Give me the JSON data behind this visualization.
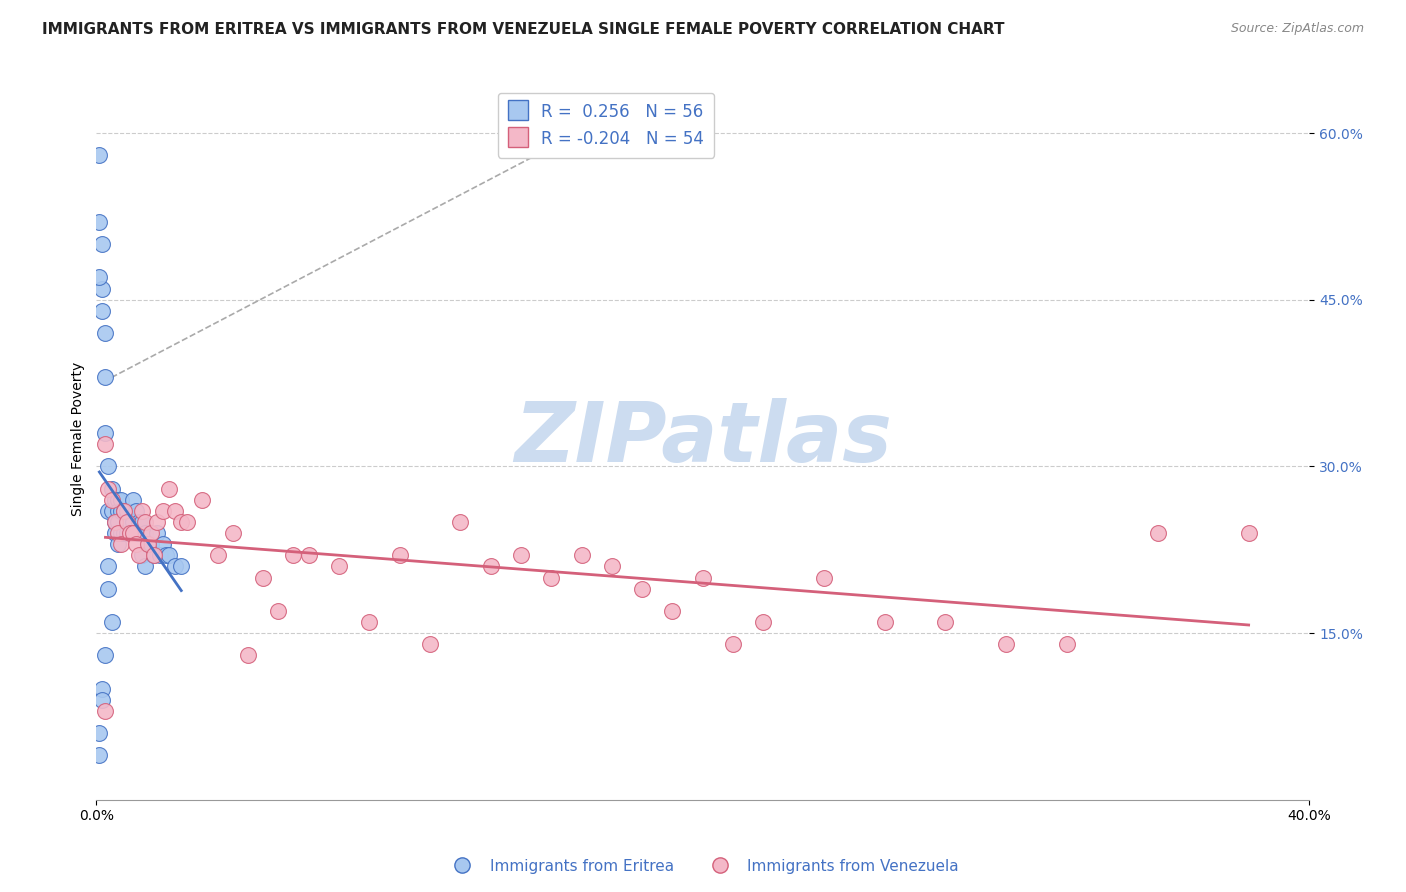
{
  "title": "IMMIGRANTS FROM ERITREA VS IMMIGRANTS FROM VENEZUELA SINGLE FEMALE POVERTY CORRELATION CHART",
  "source": "Source: ZipAtlas.com",
  "ylabel": "Single Female Poverty",
  "xmin": 0.0,
  "xmax": 0.4,
  "ymin": 0.0,
  "ymax": 0.65,
  "yticks": [
    0.15,
    0.3,
    0.45,
    0.6
  ],
  "ytick_labels": [
    "15.0%",
    "30.0%",
    "45.0%",
    "60.0%"
  ],
  "xtick_labels": [
    "0.0%",
    "40.0%"
  ],
  "legend1_label": "R =  0.256   N = 56",
  "legend2_label": "R = -0.204   N = 54",
  "color_eritrea": "#a8c8f0",
  "color_venezuela": "#f4b8c8",
  "line_color_eritrea": "#4472c4",
  "line_color_venezuela": "#d4607a",
  "watermark_text": "ZIPatlas",
  "watermark_color": "#ccdcf0",
  "background_color": "#ffffff",
  "legend_text_color": "#4472c4",
  "title_fontsize": 11,
  "axis_label_fontsize": 10,
  "tick_label_fontsize": 10,
  "eritrea_x": [
    0.001,
    0.001,
    0.001,
    0.002,
    0.002,
    0.002,
    0.003,
    0.003,
    0.003,
    0.004,
    0.004,
    0.004,
    0.005,
    0.005,
    0.005,
    0.006,
    0.006,
    0.006,
    0.007,
    0.007,
    0.007,
    0.007,
    0.008,
    0.008,
    0.008,
    0.009,
    0.009,
    0.01,
    0.01,
    0.01,
    0.011,
    0.012,
    0.012,
    0.013,
    0.013,
    0.014,
    0.015,
    0.015,
    0.016,
    0.016,
    0.017,
    0.018,
    0.019,
    0.02,
    0.021,
    0.022,
    0.023,
    0.024,
    0.026,
    0.028,
    0.001,
    0.002,
    0.003,
    0.001,
    0.002,
    0.004
  ],
  "eritrea_y": [
    0.58,
    0.52,
    0.04,
    0.5,
    0.46,
    0.1,
    0.42,
    0.33,
    0.13,
    0.3,
    0.26,
    0.21,
    0.28,
    0.26,
    0.16,
    0.27,
    0.25,
    0.24,
    0.27,
    0.26,
    0.25,
    0.23,
    0.27,
    0.26,
    0.24,
    0.26,
    0.24,
    0.26,
    0.25,
    0.24,
    0.25,
    0.27,
    0.25,
    0.26,
    0.24,
    0.25,
    0.25,
    0.22,
    0.24,
    0.21,
    0.23,
    0.23,
    0.22,
    0.24,
    0.22,
    0.23,
    0.22,
    0.22,
    0.21,
    0.21,
    0.47,
    0.44,
    0.38,
    0.06,
    0.09,
    0.19
  ],
  "venezuela_x": [
    0.003,
    0.004,
    0.005,
    0.006,
    0.007,
    0.008,
    0.009,
    0.01,
    0.011,
    0.012,
    0.013,
    0.014,
    0.015,
    0.016,
    0.017,
    0.018,
    0.019,
    0.02,
    0.022,
    0.024,
    0.026,
    0.028,
    0.03,
    0.035,
    0.04,
    0.045,
    0.05,
    0.055,
    0.06,
    0.065,
    0.07,
    0.08,
    0.09,
    0.1,
    0.11,
    0.12,
    0.13,
    0.14,
    0.15,
    0.16,
    0.17,
    0.18,
    0.19,
    0.2,
    0.21,
    0.22,
    0.24,
    0.26,
    0.28,
    0.3,
    0.32,
    0.35,
    0.38,
    0.003
  ],
  "venezuela_y": [
    0.32,
    0.28,
    0.27,
    0.25,
    0.24,
    0.23,
    0.26,
    0.25,
    0.24,
    0.24,
    0.23,
    0.22,
    0.26,
    0.25,
    0.23,
    0.24,
    0.22,
    0.25,
    0.26,
    0.28,
    0.26,
    0.25,
    0.25,
    0.27,
    0.22,
    0.24,
    0.13,
    0.2,
    0.17,
    0.22,
    0.22,
    0.21,
    0.16,
    0.22,
    0.14,
    0.25,
    0.21,
    0.22,
    0.2,
    0.22,
    0.21,
    0.19,
    0.17,
    0.2,
    0.14,
    0.16,
    0.2,
    0.16,
    0.16,
    0.14,
    0.14,
    0.24,
    0.24,
    0.08
  ]
}
